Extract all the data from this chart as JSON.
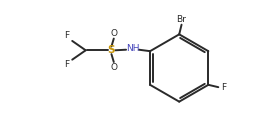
{
  "background_color": "#ffffff",
  "bond_color": "#2a2a2a",
  "label_S": "S",
  "label_N": "NH",
  "label_O": "O",
  "label_F": "F",
  "label_Br": "Br",
  "color_S": "#c8960a",
  "color_N": "#4444bb",
  "color_default": "#2a2a2a",
  "lw": 1.4,
  "figsize": [
    2.56,
    1.36
  ],
  "dpi": 100,
  "xlim": [
    0.0,
    8.5
  ],
  "ylim": [
    0.2,
    4.8
  ]
}
